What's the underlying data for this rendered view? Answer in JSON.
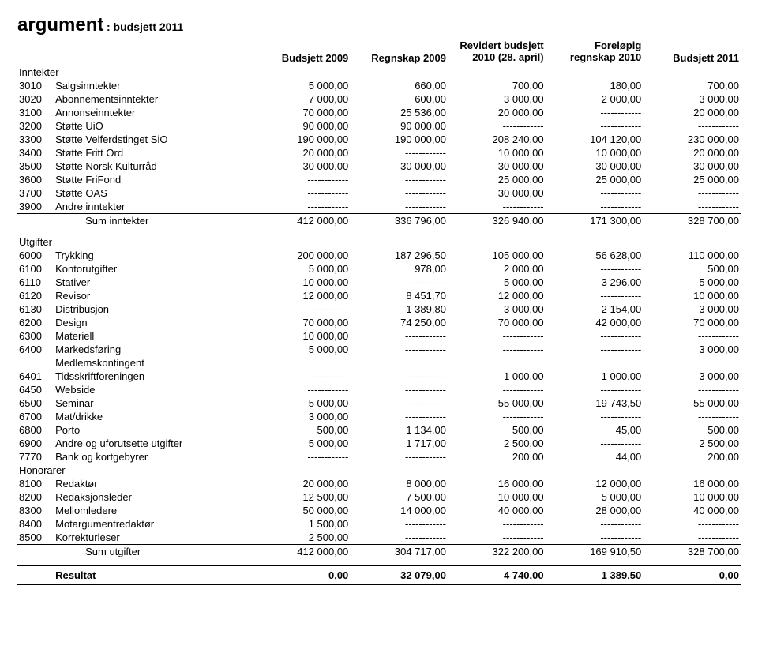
{
  "title_main": "argument",
  "title_sub": ": budsjett 2011",
  "headers": {
    "c1": "Budsjett 2009",
    "c2": "Regnskap 2009",
    "c3a": "Revidert budsjett",
    "c3b": "2010 (28. april)",
    "c4a": "Foreløpig",
    "c4b": "regnskap 2010",
    "c5": "Budsjett 2011"
  },
  "sections": {
    "inntekter": {
      "title": "Inntekter",
      "rows": [
        {
          "code": "3010",
          "label": "Salgsinntekter",
          "v": [
            "5 000,00",
            "660,00",
            "700,00",
            "180,00",
            "700,00"
          ]
        },
        {
          "code": "3020",
          "label": "Abonnementsinntekter",
          "v": [
            "7 000,00",
            "600,00",
            "3 000,00",
            "2 000,00",
            "3 000,00"
          ]
        },
        {
          "code": "3100",
          "label": "Annonseinntekter",
          "v": [
            "70 000,00",
            "25 536,00",
            "20 000,00",
            "------------",
            "20 000,00"
          ]
        },
        {
          "code": "3200",
          "label": "Støtte UiO",
          "v": [
            "90 000,00",
            "90 000,00",
            "------------",
            "------------",
            "------------"
          ]
        },
        {
          "code": "3300",
          "label": "Støtte Velferdstinget SiO",
          "v": [
            "190 000,00",
            "190 000,00",
            "208 240,00",
            "104 120,00",
            "230 000,00"
          ]
        },
        {
          "code": "3400",
          "label": "Støtte Fritt Ord",
          "v": [
            "20 000,00",
            "------------",
            "10 000,00",
            "10 000,00",
            "20 000,00"
          ]
        },
        {
          "code": "3500",
          "label": "Støtte Norsk Kulturråd",
          "v": [
            "30 000,00",
            "30 000,00",
            "30 000,00",
            "30 000,00",
            "30 000,00"
          ]
        },
        {
          "code": "3600",
          "label": "Støtte FriFond",
          "v": [
            "------------",
            "------------",
            "25 000,00",
            "25 000,00",
            "25 000,00"
          ]
        },
        {
          "code": "3700",
          "label": "Støtte OAS",
          "v": [
            "------------",
            "------------",
            "30 000,00",
            "------------",
            "------------"
          ]
        },
        {
          "code": "3900",
          "label": "Andre inntekter",
          "v": [
            "------------",
            "------------",
            "------------",
            "------------",
            "------------"
          ]
        }
      ],
      "sum": {
        "label": "Sum inntekter",
        "v": [
          "412 000,00",
          "336 796,00",
          "326 940,00",
          "171 300,00",
          "328 700,00"
        ]
      }
    },
    "utgifter": {
      "title": "Utgifter",
      "rows": [
        {
          "code": "6000",
          "label": "Trykking",
          "v": [
            "200 000,00",
            "187 296,50",
            "105 000,00",
            "56 628,00",
            "110 000,00"
          ]
        },
        {
          "code": "6100",
          "label": "Kontorutgifter",
          "v": [
            "5 000,00",
            "978,00",
            "2 000,00",
            "------------",
            "500,00"
          ]
        },
        {
          "code": "6110",
          "label": "Stativer",
          "v": [
            "10 000,00",
            "------------",
            "5 000,00",
            "3 296,00",
            "5 000,00"
          ]
        },
        {
          "code": "6120",
          "label": "Revisor",
          "v": [
            "12 000,00",
            "8 451,70",
            "12 000,00",
            "------------",
            "10 000,00"
          ]
        },
        {
          "code": "6130",
          "label": "Distribusjon",
          "v": [
            "------------",
            "1 389,80",
            "3 000,00",
            "2 154,00",
            "3 000,00"
          ]
        },
        {
          "code": "6200",
          "label": "Design",
          "v": [
            "70 000,00",
            "74 250,00",
            "70 000,00",
            "42 000,00",
            "70 000,00"
          ]
        },
        {
          "code": "6300",
          "label": "Materiell",
          "v": [
            "10 000,00",
            "------------",
            "------------",
            "------------",
            "------------"
          ]
        },
        {
          "code": "6400",
          "label": "Markedsføring",
          "v": [
            "5 000,00",
            "------------",
            "------------",
            "------------",
            "3 000,00"
          ]
        },
        {
          "code": "",
          "label": "Medlemskontingent",
          "v": [
            "",
            "",
            "",
            "",
            ""
          ]
        },
        {
          "code": "6401",
          "label": "Tidsskriftforeningen",
          "v": [
            "------------",
            "------------",
            "1 000,00",
            "1 000,00",
            "3 000,00"
          ]
        },
        {
          "code": "6450",
          "label": "Webside",
          "v": [
            "------------",
            "------------",
            "------------",
            "------------",
            "------------"
          ]
        },
        {
          "code": "6500",
          "label": "Seminar",
          "v": [
            "5 000,00",
            "------------",
            "55 000,00",
            "19 743,50",
            "55 000,00"
          ]
        },
        {
          "code": "6700",
          "label": "Mat/drikke",
          "v": [
            "3 000,00",
            "------------",
            "------------",
            "------------",
            "------------"
          ]
        },
        {
          "code": "6800",
          "label": "Porto",
          "v": [
            "500,00",
            "1 134,00",
            "500,00",
            "45,00",
            "500,00"
          ]
        },
        {
          "code": "6900",
          "label": "Andre og uforutsette utgifter",
          "v": [
            "5 000,00",
            "1 717,00",
            "2 500,00",
            "------------",
            "2 500,00"
          ]
        },
        {
          "code": "7770",
          "label": "Bank og kortgebyrer",
          "v": [
            "------------",
            "------------",
            "200,00",
            "44,00",
            "200,00"
          ]
        }
      ]
    },
    "honorarer": {
      "title": "Honorarer",
      "rows": [
        {
          "code": "8100",
          "label": "Redaktør",
          "v": [
            "20 000,00",
            "8 000,00",
            "16 000,00",
            "12 000,00",
            "16 000,00"
          ]
        },
        {
          "code": "8200",
          "label": "Redaksjonsleder",
          "v": [
            "12 500,00",
            "7 500,00",
            "10 000,00",
            "5 000,00",
            "10 000,00"
          ]
        },
        {
          "code": "8300",
          "label": "Mellomledere",
          "v": [
            "50 000,00",
            "14 000,00",
            "40 000,00",
            "28 000,00",
            "40 000,00"
          ]
        },
        {
          "code": "8400",
          "label": "Motargumentredaktør",
          "v": [
            "1 500,00",
            "------------",
            "------------",
            "------------",
            "------------"
          ]
        },
        {
          "code": "8500",
          "label": "Korrekturleser",
          "v": [
            "2 500,00",
            "------------",
            "------------",
            "------------",
            "------------"
          ]
        }
      ],
      "sum": {
        "label": "Sum utgifter",
        "v": [
          "412 000,00",
          "304 717,00",
          "322 200,00",
          "169 910,50",
          "328 700,00"
        ]
      }
    },
    "resultat": {
      "label": "Resultat",
      "v": [
        "0,00",
        "32 079,00",
        "4 740,00",
        "1 389,50",
        "0,00"
      ]
    }
  }
}
